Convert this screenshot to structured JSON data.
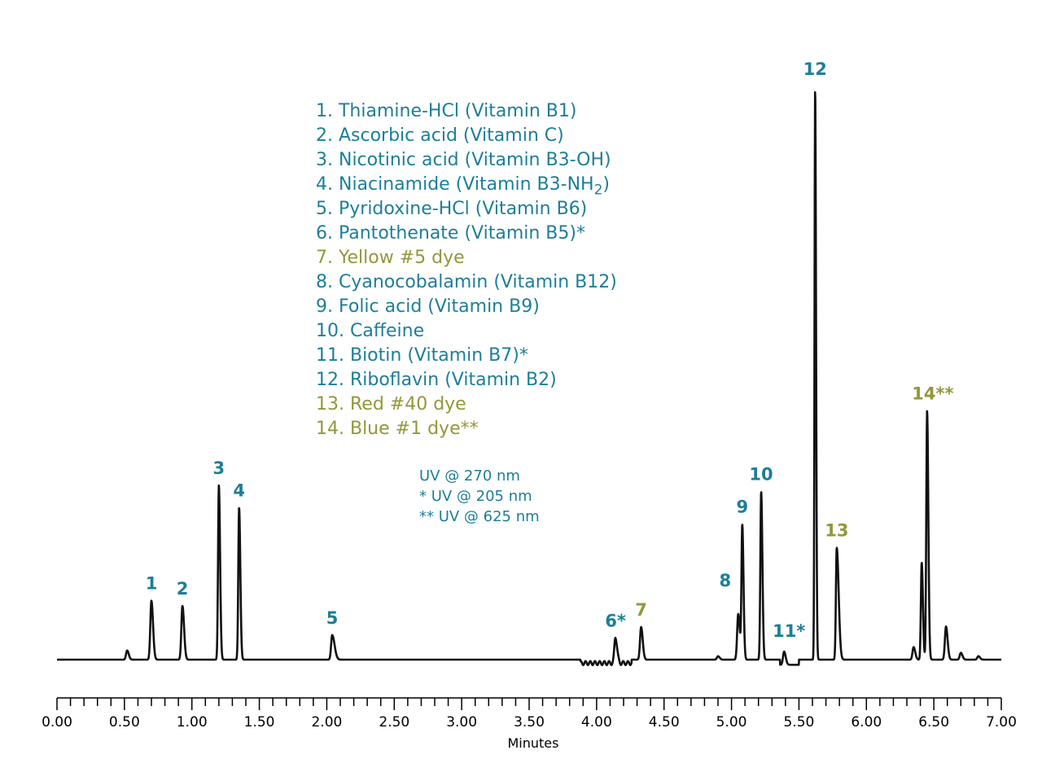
{
  "colors": {
    "teal": "#1d7e98",
    "olive": "#93973a",
    "trace": "#111111",
    "axis": "#000000"
  },
  "chart_data": {
    "type": "line",
    "title": "",
    "xlabel": "Minutes",
    "ylabel": "",
    "xlim": [
      0,
      7
    ],
    "ylim": [
      0,
      100
    ],
    "grid": false,
    "xticks": [
      {
        "value": 0.0,
        "label": "0.00"
      },
      {
        "value": 0.5,
        "label": "0.50"
      },
      {
        "value": 1.0,
        "label": "1.00"
      },
      {
        "value": 1.5,
        "label": "1.50"
      },
      {
        "value": 2.0,
        "label": "2.00"
      },
      {
        "value": 2.5,
        "label": "2.50"
      },
      {
        "value": 3.0,
        "label": "3.00"
      },
      {
        "value": 3.5,
        "label": "3.50"
      },
      {
        "value": 4.0,
        "label": "4.00"
      },
      {
        "value": 4.5,
        "label": "4.50"
      },
      {
        "value": 5.0,
        "label": "5.00"
      },
      {
        "value": 5.5,
        "label": "5.50"
      },
      {
        "value": 6.0,
        "label": "6.00"
      },
      {
        "value": 6.5,
        "label": "6.50"
      },
      {
        "value": 7.0,
        "label": "7.00"
      }
    ],
    "peaks": [
      {
        "label": "1",
        "rt": 0.7,
        "height": 10.3,
        "color": "teal"
      },
      {
        "label": "2",
        "rt": 0.93,
        "height": 9.4,
        "color": "teal"
      },
      {
        "label": "3",
        "rt": 1.2,
        "height": 30.5,
        "color": "teal"
      },
      {
        "label": "4",
        "rt": 1.35,
        "height": 26.6,
        "color": "teal"
      },
      {
        "label": "5",
        "rt": 2.04,
        "height": 4.3,
        "color": "teal"
      },
      {
        "label": "6*",
        "rt": 4.14,
        "height": 4.6,
        "color": "teal"
      },
      {
        "label": "7",
        "rt": 4.33,
        "height": 5.7,
        "color": "olive"
      },
      {
        "label": "8",
        "rt": 5.05,
        "height": 8.0,
        "color": "teal"
      },
      {
        "label": "9",
        "rt": 5.08,
        "height": 23.4,
        "color": "teal"
      },
      {
        "label": "10",
        "rt": 5.22,
        "height": 29.4,
        "color": "teal"
      },
      {
        "label": "11*",
        "rt": 5.39,
        "height": 2.3,
        "color": "teal"
      },
      {
        "label": "12",
        "rt": 5.62,
        "height": 100,
        "color": "teal"
      },
      {
        "label": "13",
        "rt": 5.78,
        "height": 19.6,
        "color": "olive"
      },
      {
        "label": "14**",
        "rt": 6.45,
        "height": 43.5,
        "color": "olive"
      }
    ],
    "minor_peaks": [
      {
        "rt": 0.52,
        "height": 1.6
      },
      {
        "rt": 4.9,
        "height": 0.6
      },
      {
        "rt": 6.35,
        "height": 2.2
      },
      {
        "rt": 6.41,
        "height": 17.0
      },
      {
        "rt": 6.59,
        "height": 5.8
      },
      {
        "rt": 6.7,
        "height": 1.2
      },
      {
        "rt": 6.83,
        "height": 0.6
      }
    ]
  },
  "legend": [
    {
      "text": "1. Thiamine-HCl (Vitamin B1)",
      "color": "teal"
    },
    {
      "text": "2. Ascorbic acid (Vitamin C)",
      "color": "teal"
    },
    {
      "text": "3. Nicotinic acid (Vitamin B3-OH)",
      "color": "teal"
    },
    {
      "text": "4. Niacinamide (Vitamin B3-NH",
      "sub": "2",
      "after": ")",
      "color": "teal"
    },
    {
      "text": "5. Pyridoxine-HCl (Vitamin B6)",
      "color": "teal"
    },
    {
      "text": "6. Pantothenate (Vitamin B5)*",
      "color": "teal"
    },
    {
      "text": "7. Yellow #5 dye",
      "color": "olive"
    },
    {
      "text": "8. Cyanocobalamin (Vitamin B12)",
      "color": "teal"
    },
    {
      "text": "9. Folic acid (Vitamin B9)",
      "color": "teal"
    },
    {
      "text": "10. Caffeine",
      "color": "teal"
    },
    {
      "text": "11. Biotin (Vitamin B7)*",
      "color": "teal"
    },
    {
      "text": "12. Riboflavin (Vitamin B2)",
      "color": "teal"
    },
    {
      "text": "13. Red #40 dye",
      "color": "olive"
    },
    {
      "text": "14. Blue #1 dye**",
      "color": "olive"
    }
  ],
  "uv_notes": [
    "UV @ 270 nm",
    "* UV @ 205 nm",
    "** UV @ 625 nm"
  ]
}
